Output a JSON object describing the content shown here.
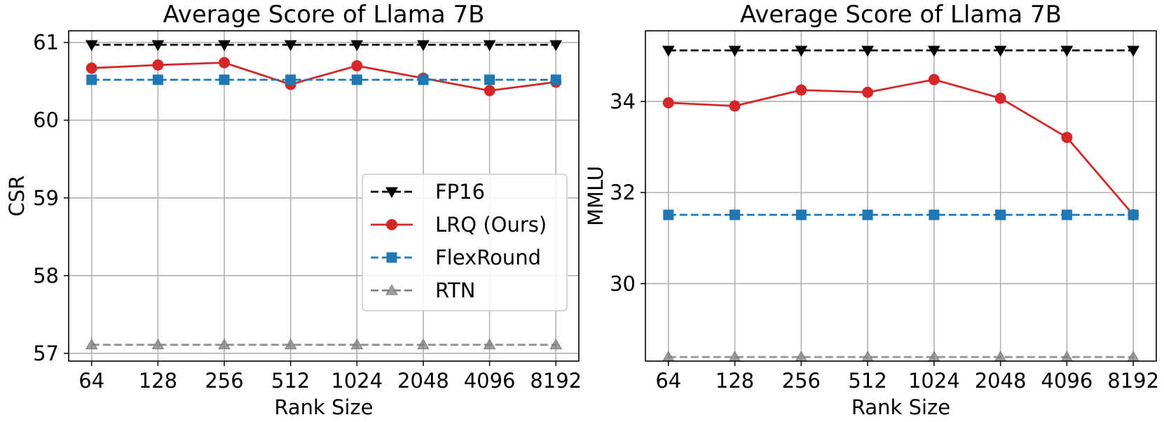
{
  "chart_data": [
    {
      "type": "line",
      "title": "Average Score of Llama 7B",
      "xlabel": "Rank Size",
      "ylabel": "CSR",
      "categories": [
        "64",
        "128",
        "256",
        "512",
        "1024",
        "2048",
        "4096",
        "8192"
      ],
      "ylim": [
        56.9,
        61.15
      ],
      "yticks": [
        57,
        58,
        59,
        60,
        61
      ],
      "grid": true,
      "legend": "center-right",
      "series": [
        {
          "name": "FP16",
          "values": [
            60.97,
            60.97,
            60.97,
            60.97,
            60.97,
            60.97,
            60.97,
            60.97
          ],
          "color": "#000000",
          "dash": true,
          "marker": "triangle-down"
        },
        {
          "name": "LRQ (Ours)",
          "values": [
            60.67,
            60.71,
            60.74,
            60.46,
            60.7,
            60.54,
            60.38,
            60.49
          ],
          "color": "#d62728",
          "dash": false,
          "marker": "circle"
        },
        {
          "name": "FlexRound",
          "values": [
            60.52,
            60.52,
            60.52,
            60.52,
            60.52,
            60.52,
            60.52,
            60.52
          ],
          "color": "#1f77b4",
          "dash": true,
          "marker": "square"
        },
        {
          "name": "RTN",
          "values": [
            57.11,
            57.11,
            57.11,
            57.11,
            57.11,
            57.11,
            57.11,
            57.11
          ],
          "color": "#7f7f7f",
          "dash": true,
          "marker": "triangle-up"
        }
      ]
    },
    {
      "type": "line",
      "title": "Average Score of Llama 7B",
      "xlabel": "Rank Size",
      "ylabel": "MMLU",
      "categories": [
        "64",
        "128",
        "256",
        "512",
        "1024",
        "2048",
        "4096",
        "8192"
      ],
      "ylim": [
        28.3,
        35.55
      ],
      "yticks": [
        30,
        32,
        34
      ],
      "grid": true,
      "legend": "none",
      "series": [
        {
          "name": "FP16",
          "values": [
            35.12,
            35.12,
            35.12,
            35.12,
            35.12,
            35.12,
            35.12,
            35.12
          ],
          "color": "#000000",
          "dash": true,
          "marker": "triangle-down"
        },
        {
          "name": "LRQ (Ours)",
          "values": [
            33.97,
            33.9,
            34.25,
            34.2,
            34.48,
            34.07,
            33.21,
            31.51
          ],
          "color": "#d62728",
          "dash": false,
          "marker": "circle"
        },
        {
          "name": "FlexRound",
          "values": [
            31.51,
            31.51,
            31.51,
            31.51,
            31.51,
            31.51,
            31.51,
            31.51
          ],
          "color": "#1f77b4",
          "dash": true,
          "marker": "square"
        },
        {
          "name": "RTN",
          "values": [
            28.39,
            28.39,
            28.39,
            28.39,
            28.39,
            28.39,
            28.39,
            28.39
          ],
          "color": "#7f7f7f",
          "dash": true,
          "marker": "triangle-up"
        }
      ]
    }
  ]
}
